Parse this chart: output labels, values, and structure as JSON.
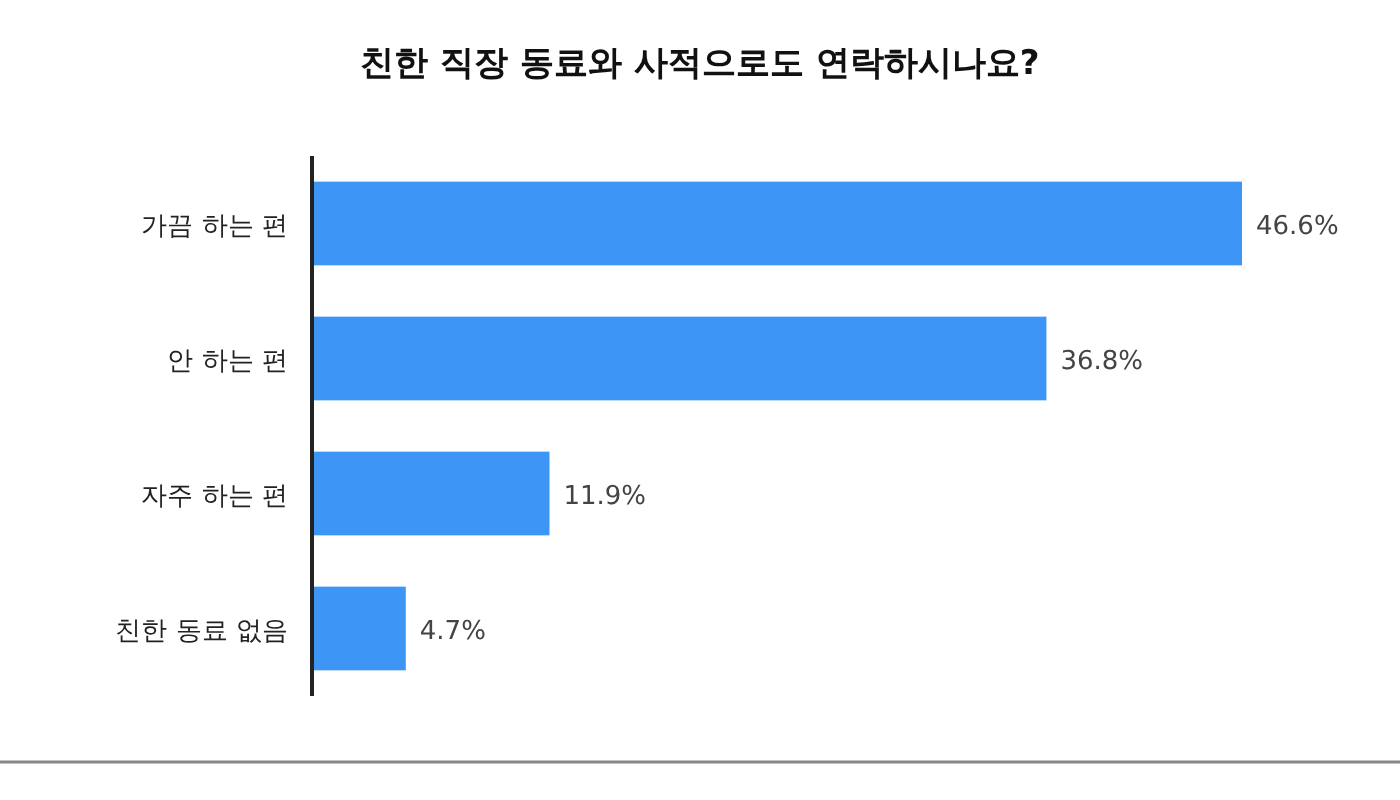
{
  "chart_data": {
    "type": "bar",
    "orientation": "horizontal",
    "title": "친한 직장 동료와 사적으로도 연락하시나요?",
    "categories": [
      "가끔 하는 편",
      "안 하는 편",
      "자주 하는 편",
      "친한 동료 없음"
    ],
    "values": [
      46.6,
      36.8,
      11.9,
      4.7
    ],
    "value_labels": [
      "46.6%",
      "36.8%",
      "11.9%",
      "4.7%"
    ],
    "color": "#3d95f6"
  }
}
